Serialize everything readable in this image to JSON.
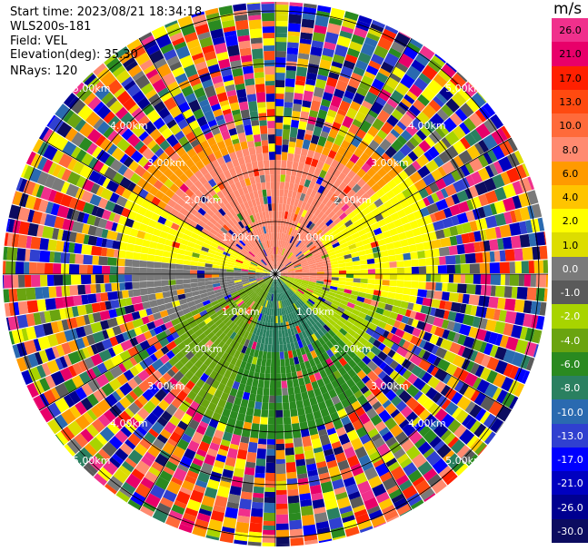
{
  "header": {
    "start_time": "Start time: 2023/08/21 18:34:18",
    "instrument": "WLS200s-181",
    "field": "Field: VEL",
    "elevation": "Elevation(deg): 35.30",
    "nrays": "NRays: 120"
  },
  "colorbar": {
    "unit": "m/s",
    "ticks": [
      "26.0",
      "21.0",
      "17.0",
      "13.0",
      "10.0",
      "8.0",
      "6.0",
      "4.0",
      "2.0",
      "1.0",
      "0.0",
      "-1.0",
      "-2.0",
      "-4.0",
      "-6.0",
      "-8.0",
      "-10.0",
      "-13.0",
      "-17.0",
      "-21.0",
      "-26.0",
      "-30.0"
    ],
    "colors": [
      "#f0308c",
      "#e8006a",
      "#ff2000",
      "#ff4a10",
      "#ff6a3a",
      "#ff8a70",
      "#ff9a00",
      "#ffc400",
      "#ffff00",
      "#dddd00",
      "#7a7a7a",
      "#5a5a5a",
      "#a8d400",
      "#6aa410",
      "#2a8a20",
      "#2a8060",
      "#2a6ab0",
      "#3040d0",
      "#0000ff",
      "#0000c0",
      "#000090",
      "#0c0c60"
    ]
  },
  "chart_data": {
    "type": "heatmap",
    "projection": "polar PPI (plan position indicator)",
    "field": "VEL",
    "units": "m/s",
    "n_rays": 120,
    "range_rings": [
      "1.00km",
      "2.00km",
      "3.00km",
      "4.00km",
      "5.00km"
    ],
    "value_range": [
      -30.0,
      26.0
    ],
    "description_of_pattern": "inner ~2.5 km coherent wind field: positive velocities (orange/yellow) toward north and east, negative (green/teal) toward south; outer gates noisy random speckle"
  }
}
